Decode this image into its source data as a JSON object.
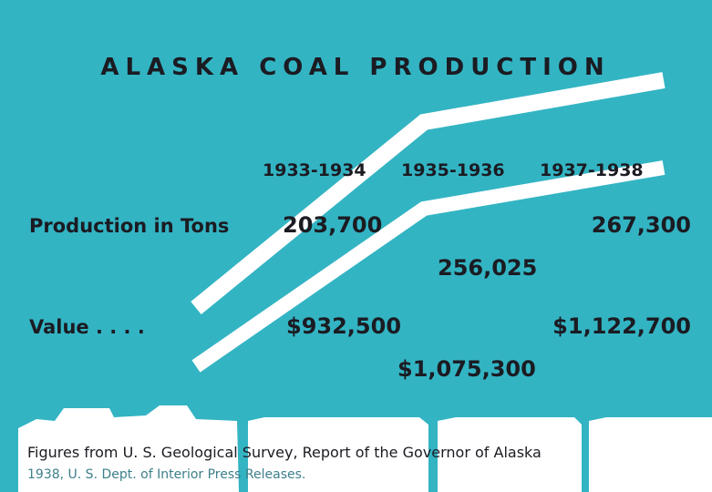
{
  "title": "ALASKA COAL PRODUCTION",
  "periods": [
    "1933-1934",
    "1935-1936",
    "1937-1938"
  ],
  "rows": [
    {
      "label": "Production in Tons",
      "values": [
        "203,700",
        "256,025",
        "267,300"
      ]
    },
    {
      "label": "Value . . . .",
      "values": [
        "$932,500",
        "$1,075,300",
        "$1,122,700"
      ]
    }
  ],
  "footnote": [
    "Figures from U. S. Geological Survey, Report of the Governor of Alaska",
    "1938, U. S. Dept. of Interior Press Releases."
  ]
}
